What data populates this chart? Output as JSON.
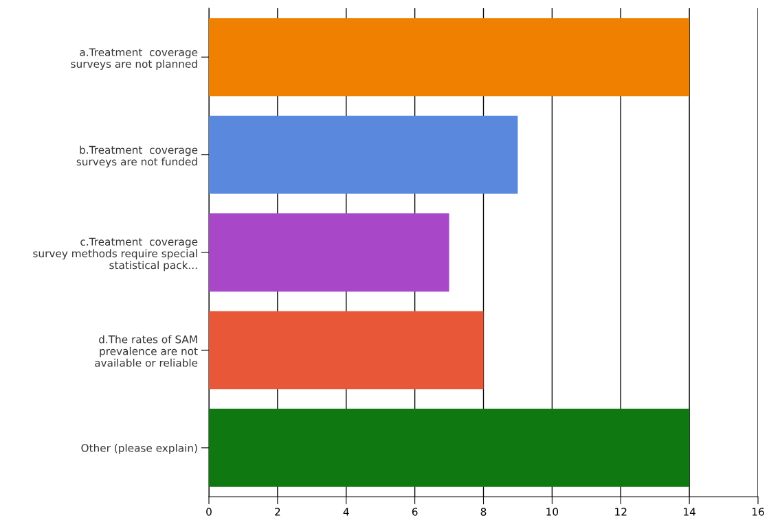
{
  "chart_data": {
    "type": "bar",
    "orientation": "horizontal",
    "categories": [
      "a.Treatment  coverage\nsurveys are not planned",
      "b.Treatment  coverage\nsurveys are not funded",
      "c.Treatment  coverage\nsurvey methods require special\nstatistical pack...",
      "d.The rates of SAM\nprevalence are not\navailable or reliable",
      "Other (please explain)"
    ],
    "values": [
      14,
      9,
      7,
      8,
      14
    ],
    "colors": [
      "#f08000",
      "#5a88dc",
      "#a848c8",
      "#e85838",
      "#107810"
    ],
    "xlim": [
      0,
      16
    ],
    "xticks": [
      0,
      2,
      4,
      6,
      8,
      10,
      12,
      14,
      16
    ],
    "grid": "x"
  }
}
